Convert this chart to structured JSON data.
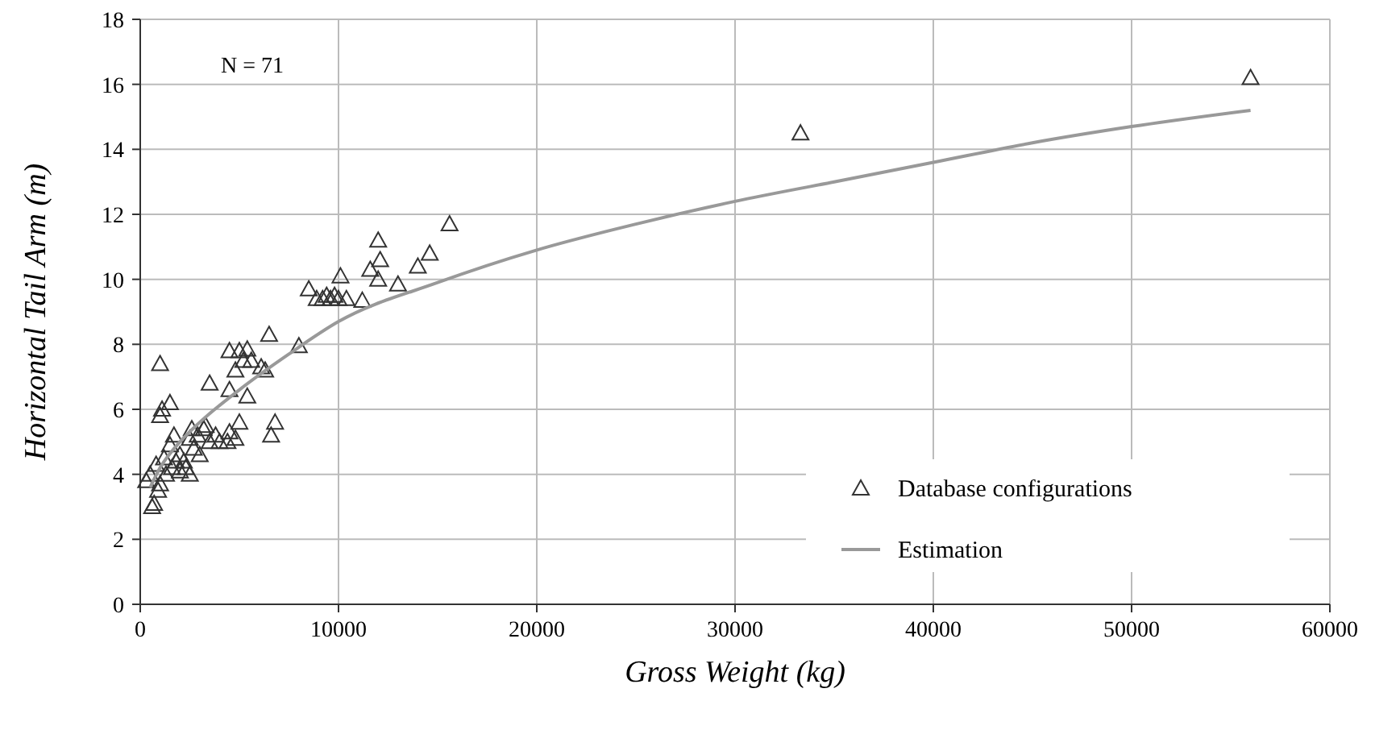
{
  "chart_data": {
    "type": "scatter",
    "xlabel": "Gross Weight (kg)",
    "ylabel": "Horizontal Tail Arm (m)",
    "annotations": [
      "N = 71"
    ],
    "xlim": [
      0,
      60000
    ],
    "xticks": [
      0,
      10000,
      20000,
      30000,
      40000,
      50000,
      60000
    ],
    "ylim": [
      0,
      18
    ],
    "yticks": [
      0,
      2,
      4,
      6,
      8,
      10,
      12,
      14,
      16,
      18
    ],
    "grid": true,
    "legend": "bottom right",
    "series": [
      {
        "name": "Database configurations",
        "marker": "triangle",
        "color": "#333333",
        "x": [
          33300,
          56000,
          15600,
          12000,
          12100,
          14600,
          14000,
          11600,
          12000,
          13000,
          10100,
          8500,
          8900,
          9400,
          9600,
          9800,
          10000,
          10400,
          11200,
          8000,
          6500,
          5000,
          4500,
          5400,
          5600,
          4800,
          5200,
          6100,
          4500,
          3500,
          5400,
          1000,
          1100,
          1000,
          1500,
          6800,
          6600,
          5000,
          4500,
          4400,
          4000,
          3500,
          3200,
          2900,
          2500,
          2700,
          1700,
          2000,
          1500,
          1200,
          800,
          500,
          300,
          1600,
          2000,
          2500,
          2200,
          1000,
          900,
          700,
          600,
          3000,
          3800,
          2300,
          1300,
          4800,
          3300,
          6300,
          9200,
          1800,
          2600
        ],
        "values": [
          14.5,
          16.2,
          11.7,
          11.2,
          10.6,
          10.8,
          10.4,
          10.3,
          10,
          9.85,
          10.1,
          9.7,
          9.4,
          9.5,
          9.4,
          9.5,
          9.4,
          9.4,
          9.35,
          7.95,
          8.3,
          7.8,
          7.8,
          7.85,
          7.5,
          7.2,
          7.5,
          7.3,
          6.6,
          6.8,
          6.4,
          7.4,
          6,
          5.8,
          6.2,
          5.6,
          5.2,
          5.6,
          5.3,
          5,
          5,
          5,
          5.4,
          5.2,
          5.1,
          4.8,
          5.2,
          4.6,
          4.9,
          4.5,
          4.3,
          4,
          3.8,
          4.2,
          4.1,
          4,
          4.4,
          3.7,
          3.5,
          3.1,
          3,
          4.6,
          5.2,
          4.2,
          4,
          5.1,
          5.5,
          7.2,
          9.4,
          4.4,
          5.4
        ]
      },
      {
        "name": "Estimation",
        "type": "line",
        "marker": "none",
        "color": "#999999",
        "x": [
          500,
          1000,
          2000,
          3000,
          5000,
          7500,
          10000,
          15000,
          20000,
          25000,
          30000,
          35000,
          40000,
          45000,
          50000,
          56000
        ],
        "values": [
          3.6,
          4.2,
          5,
          5.6,
          6.6,
          7.7,
          8.7,
          9.9,
          10.9,
          11.7,
          12.4,
          13,
          13.6,
          14.2,
          14.7,
          15.2
        ]
      }
    ]
  }
}
